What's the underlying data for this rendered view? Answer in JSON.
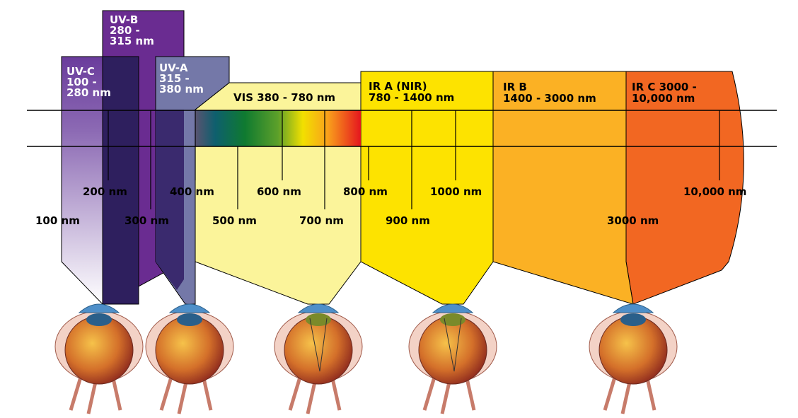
{
  "bands": [
    {
      "lines": [
        "UV-C",
        "100 -",
        "280 nm"
      ]
    },
    {
      "lines": [
        "UV-B",
        "280 -",
        "315 nm"
      ]
    },
    {
      "lines": [
        "UV-A",
        "315 -",
        "380 nm"
      ]
    },
    {
      "lines": [
        "VIS 380 - 780 nm"
      ]
    },
    {
      "lines": [
        "IR A (NIR)",
        "780 - 1400 nm"
      ]
    },
    {
      "lines": [
        "IR B",
        "1400 - 3000 nm"
      ]
    },
    {
      "lines": [
        "IR C 3000 -",
        "10,000 nm"
      ]
    }
  ],
  "wavelengths": [
    "100 nm",
    "200 nm",
    "300 nm",
    "400 nm",
    "500 nm",
    "600 nm",
    "700 nm",
    "800 nm",
    "900 nm",
    "1000 nm",
    "3000 nm",
    "10,000 nm"
  ]
}
